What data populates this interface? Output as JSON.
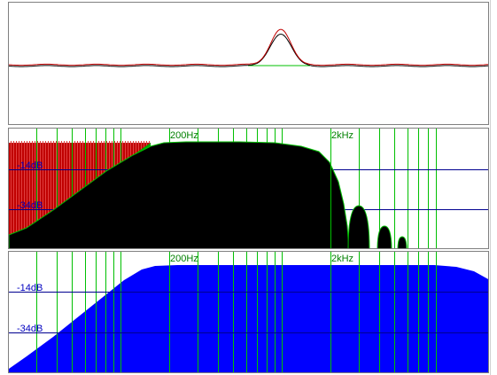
{
  "colors": {
    "background": "#ffffff",
    "grid_green": "#00c000",
    "db_line_blue": "#000090",
    "db_label_blue": "#0000c0",
    "hz_label_green": "#008000",
    "response_red": "#c00000",
    "response_black": "#000000",
    "input_red_fill": "#c00000",
    "input_green_fill": "#00a000",
    "output_black_fill": "#000000",
    "spectrum2_fill": "#0000ff"
  },
  "panels": {
    "time_view": {
      "traces": [
        "impulse-response-black",
        "impulse-response-red"
      ]
    },
    "spectrum_top": {
      "freq_labels": [
        "200Hz",
        "2kHz"
      ],
      "db_labels": [
        "-14dB",
        "-34dB"
      ]
    },
    "spectrum_bottom": {
      "freq_labels": [
        "200Hz",
        "2kHz"
      ],
      "db_labels": [
        "-14dB",
        "-34dB"
      ]
    }
  }
}
